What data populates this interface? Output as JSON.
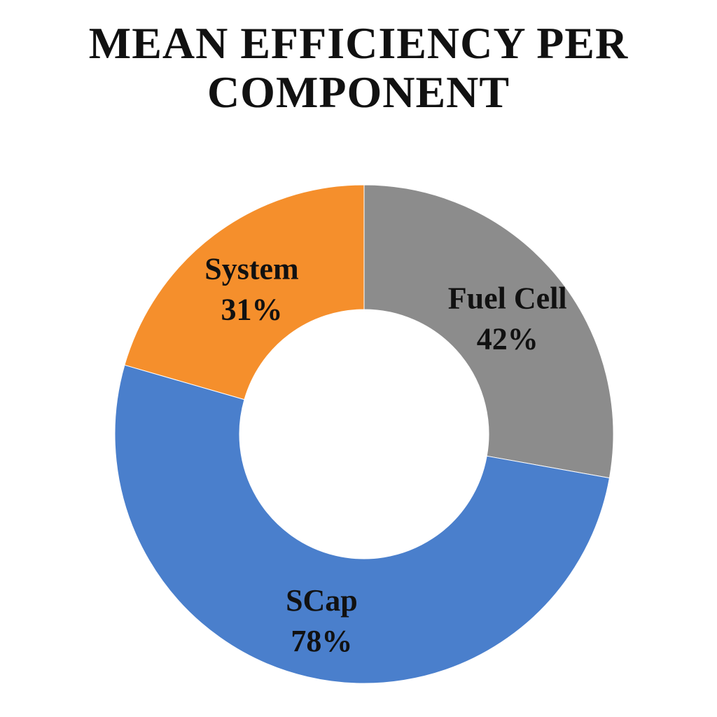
{
  "title_lines": [
    "MEAN EFFICIENCY PER",
    "COMPONENT"
  ],
  "chart_data": {
    "type": "pie",
    "title": "MEAN EFFICIENCY PER COMPONENT",
    "donut": true,
    "legend": "none",
    "slices": [
      {
        "name": "Fuel Cell",
        "value": 42,
        "label": "42%",
        "color": "#8c8c8c"
      },
      {
        "name": "SCap",
        "value": 78,
        "label": "78%",
        "color": "#4a7fcc"
      },
      {
        "name": "System",
        "value": 31,
        "label": "31%",
        "color": "#f58f2c"
      }
    ]
  }
}
